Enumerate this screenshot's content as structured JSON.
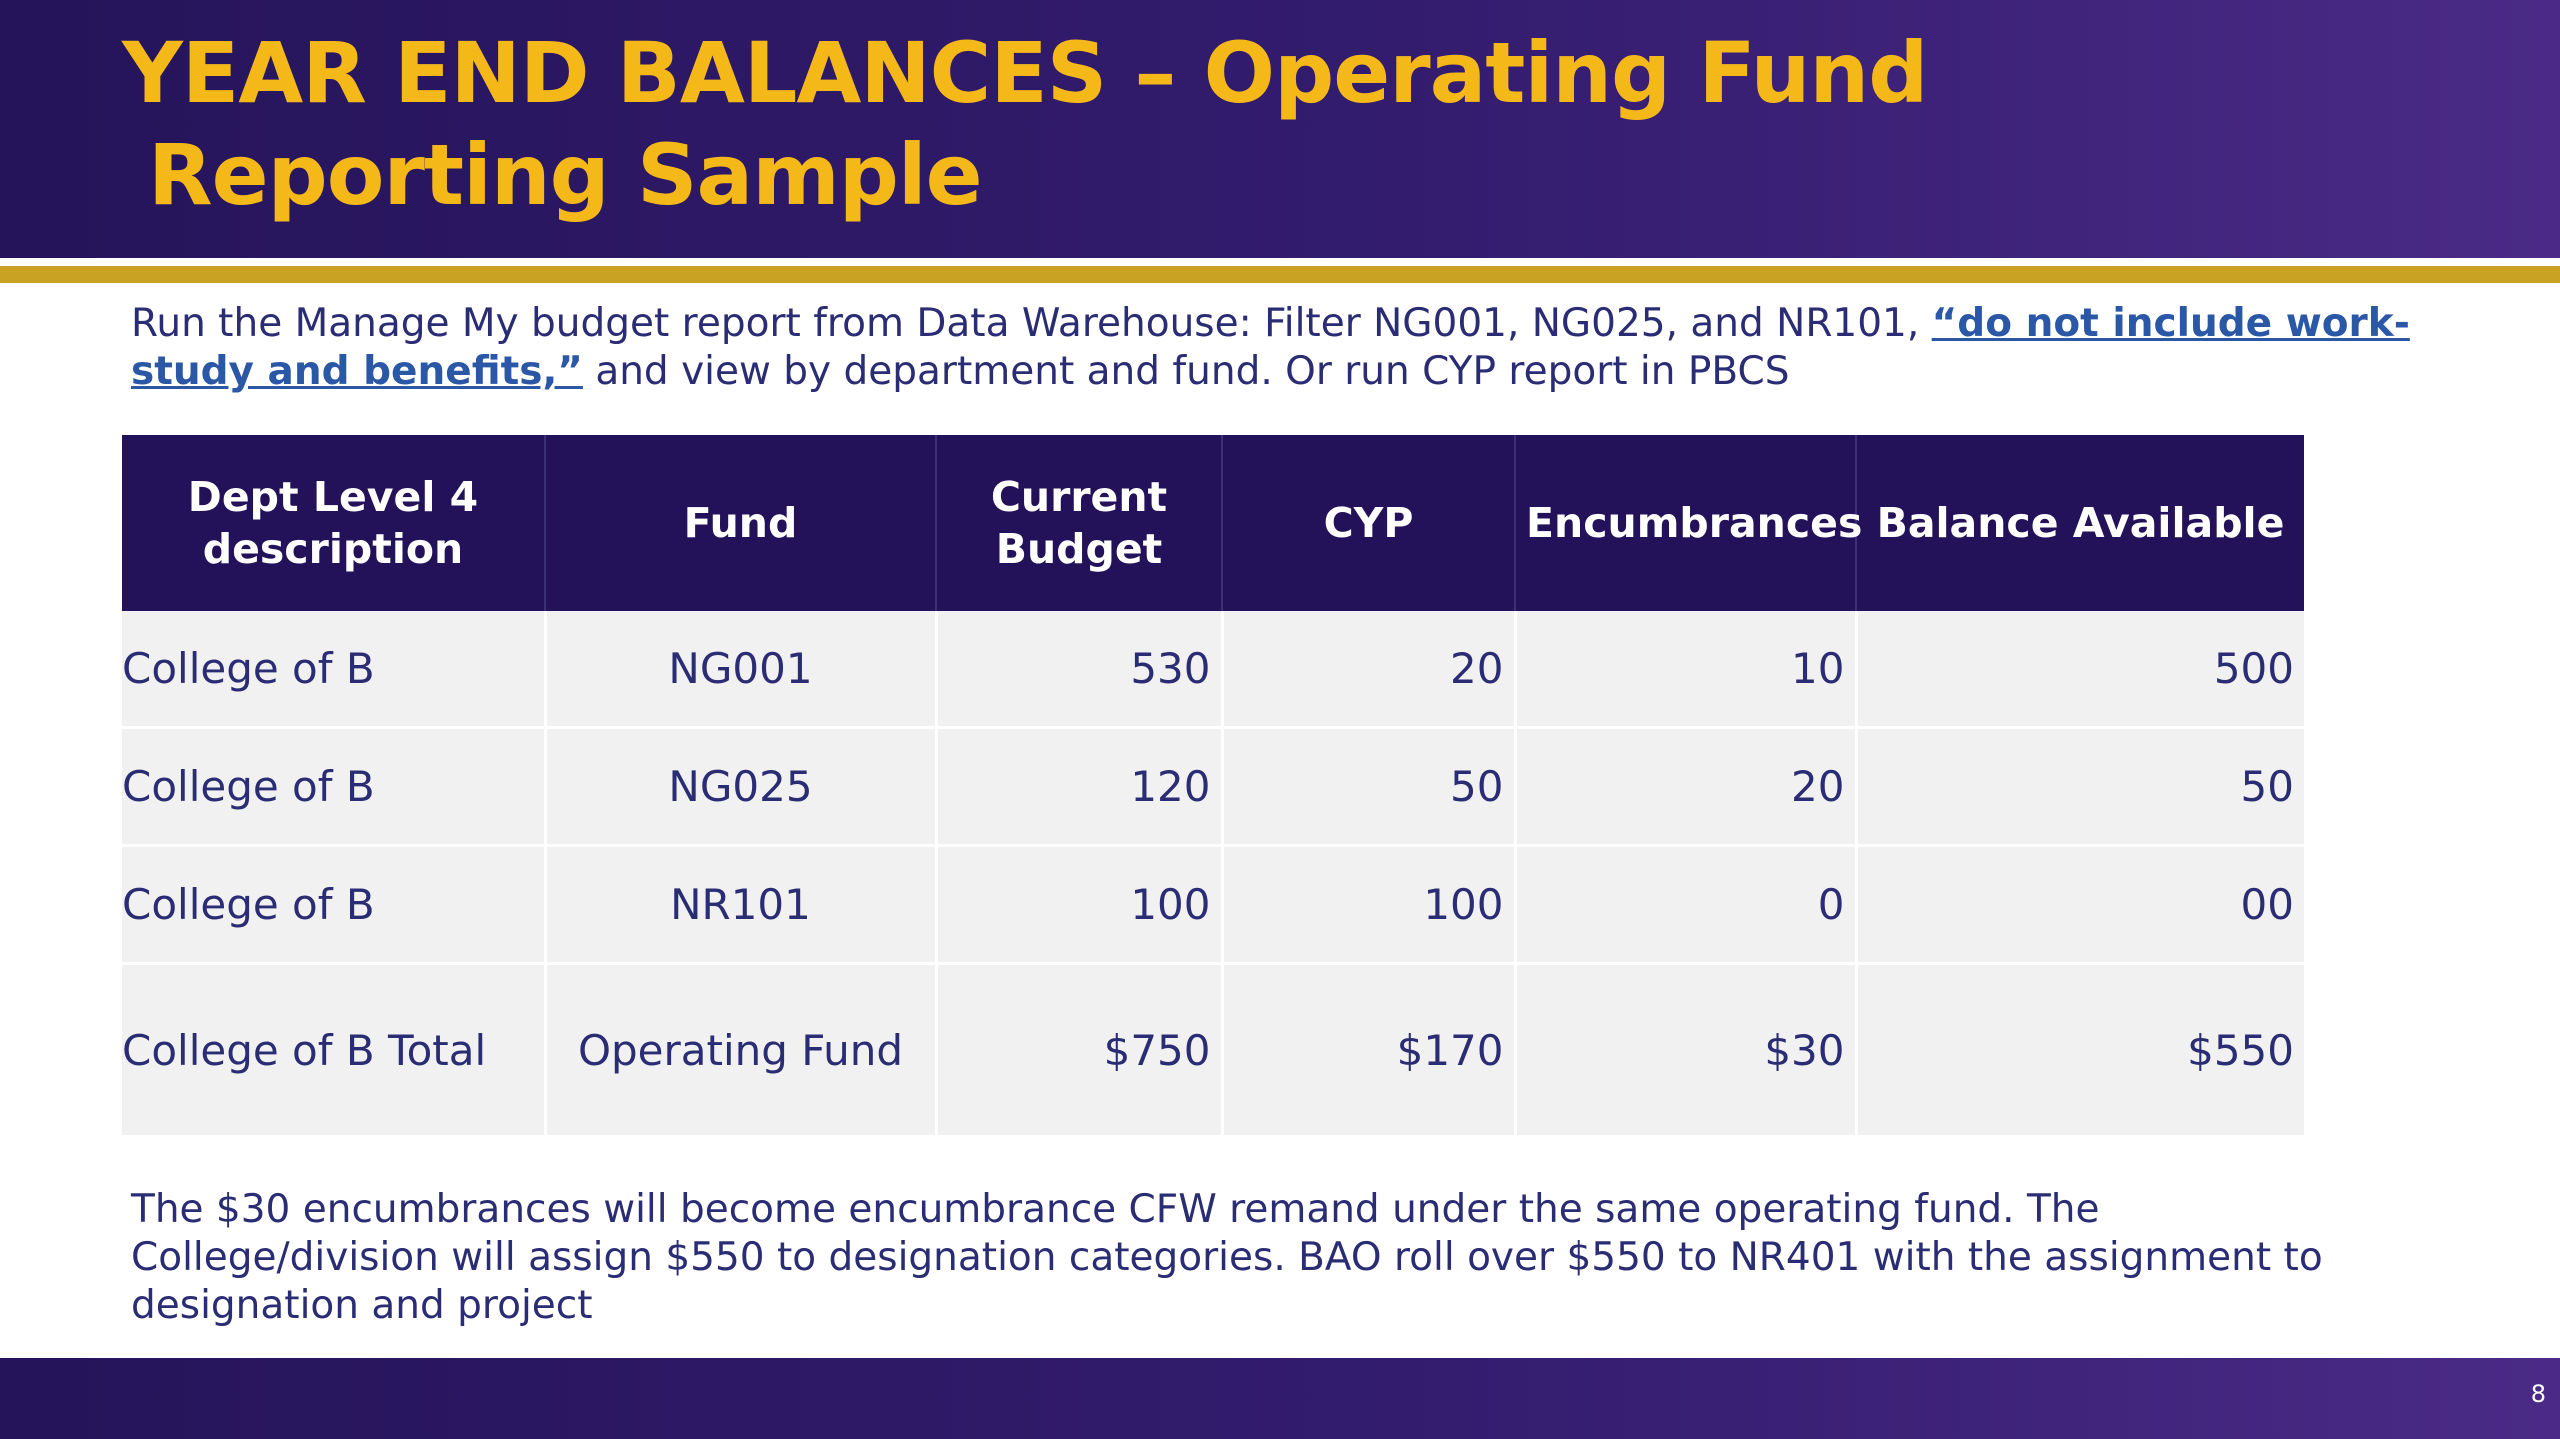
{
  "slide": {
    "title_line1": "YEAR END BALANCES – Operating Fund",
    "title_line2": "Reporting Sample",
    "page_number": "8"
  },
  "intro": {
    "text_before_link": "Run the Manage My budget report from Data Warehouse: Filter NG001, NG025, and NR101, ",
    "link_text": "“do not include work-study and benefits,”",
    "text_after_link": " and view by department and fund. Or run CYP report in PBCS"
  },
  "table": {
    "headers": [
      "Dept Level 4 description",
      "Fund",
      "Current Budget",
      "CYP",
      "Encumbrances",
      "Balance Available"
    ],
    "rows": [
      [
        "College of B",
        "NG001",
        "530",
        "20",
        "10",
        "500"
      ],
      [
        "College of B",
        "NG025",
        "120",
        "50",
        "20",
        "50"
      ],
      [
        "College of B",
        "NR101",
        "100",
        "100",
        "0",
        "00"
      ]
    ],
    "total_row": [
      "College of B Total",
      "Operating Fund",
      "$750",
      "$170",
      "$30",
      "$550"
    ]
  },
  "note": {
    "text": "The $30 encumbrances will become encumbrance CFW remand under the same operating fund. The College/division will assign $550 to designation categories. BAO roll over $550 to NR401 with the assignment to designation and project"
  },
  "colors": {
    "header_purple": "#25145a",
    "title_gold": "#f5b819",
    "rule_gold": "#c9a224",
    "table_header": "#231259",
    "body_text": "#2b2d74",
    "link_blue": "#2a58a6",
    "cell_background": "#f1f1f1"
  }
}
